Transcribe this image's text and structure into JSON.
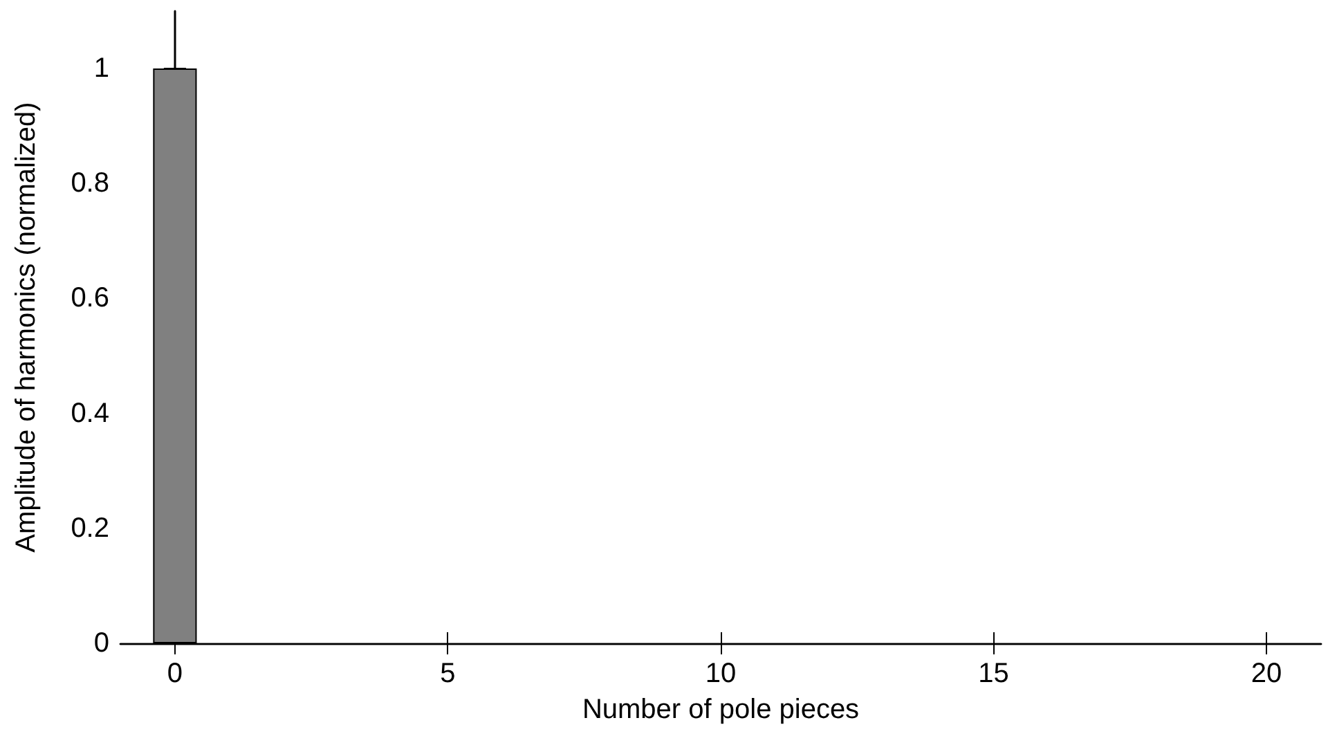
{
  "chart_data": {
    "type": "bar",
    "xlabel": "Number of pole pieces",
    "ylabel": "Amplitude of harmonics (normalized)",
    "x": [
      0
    ],
    "values": [
      1
    ],
    "color": "#808080",
    "xlim": [
      -1,
      21
    ],
    "xticks": [
      0,
      5,
      10,
      15,
      20
    ],
    "ylim": [
      0,
      1.1
    ],
    "yticks": [
      0,
      0.2,
      0.4,
      0.6,
      0.8,
      1
    ],
    "grid": false
  }
}
